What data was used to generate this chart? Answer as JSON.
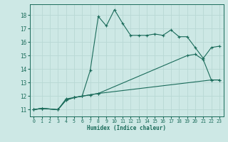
{
  "xlabel": "Humidex (Indice chaleur)",
  "bg_color": "#cde8e5",
  "line_color": "#1a6b5a",
  "grid_color": "#b8d8d4",
  "xlim": [
    -0.5,
    23.5
  ],
  "ylim": [
    10.5,
    18.8
  ],
  "yticks": [
    11,
    12,
    13,
    14,
    15,
    16,
    17,
    18
  ],
  "xticks": [
    0,
    1,
    2,
    3,
    4,
    5,
    6,
    7,
    8,
    9,
    10,
    11,
    12,
    13,
    14,
    15,
    16,
    17,
    18,
    19,
    20,
    21,
    22,
    23
  ],
  "series": [
    {
      "x": [
        0,
        1,
        3,
        4,
        5,
        6,
        7,
        8,
        9,
        10,
        11,
        12,
        13,
        14,
        15,
        16,
        17,
        18,
        19,
        20,
        21,
        22,
        23
      ],
      "y": [
        11.0,
        11.1,
        11.0,
        11.8,
        11.9,
        12.0,
        13.9,
        17.9,
        17.2,
        18.4,
        17.4,
        16.5,
        16.5,
        16.5,
        16.6,
        16.5,
        16.9,
        16.4,
        16.4,
        15.6,
        14.8,
        15.6,
        15.7
      ]
    },
    {
      "x": [
        0,
        1,
        3,
        4,
        5,
        6,
        7,
        8,
        19,
        20,
        21,
        22,
        23
      ],
      "y": [
        11.0,
        11.1,
        11.0,
        11.7,
        11.9,
        12.0,
        12.1,
        12.2,
        15.0,
        15.1,
        14.7,
        13.2,
        13.2
      ]
    },
    {
      "x": [
        0,
        1,
        3,
        4,
        5,
        6,
        7,
        8,
        22,
        23
      ],
      "y": [
        11.0,
        11.1,
        11.0,
        11.7,
        11.9,
        12.0,
        12.1,
        12.2,
        13.2,
        13.2
      ]
    }
  ]
}
